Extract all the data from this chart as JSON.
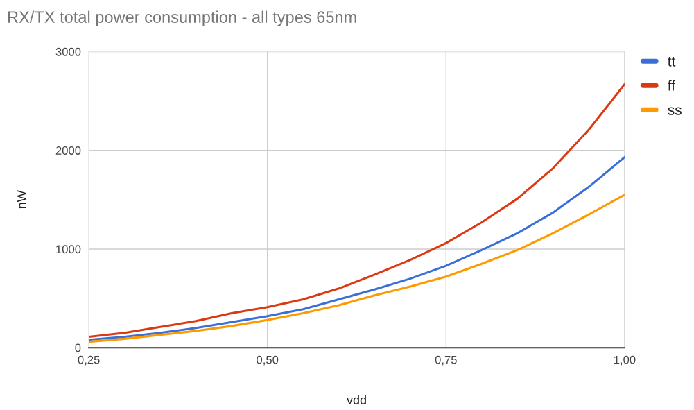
{
  "chart_data": {
    "type": "line",
    "title": "RX/TX total power consumption - all types 65nm",
    "xlabel": "vdd",
    "ylabel": "nW",
    "x": [
      0.25,
      0.3,
      0.35,
      0.4,
      0.45,
      0.5,
      0.55,
      0.6,
      0.65,
      0.7,
      0.75,
      0.8,
      0.85,
      0.9,
      0.95,
      1.0
    ],
    "series": [
      {
        "name": "tt",
        "color": "#3b6fd8",
        "values": [
          80,
          110,
          150,
          200,
          260,
          320,
          390,
          490,
          590,
          700,
          830,
          990,
          1160,
          1370,
          1630,
          1930
        ]
      },
      {
        "name": "ff",
        "color": "#dc3912",
        "values": [
          110,
          150,
          210,
          270,
          350,
          410,
          490,
          600,
          740,
          890,
          1060,
          1270,
          1510,
          1820,
          2210,
          2670
        ]
      },
      {
        "name": "ss",
        "color": "#ff9900",
        "values": [
          60,
          90,
          130,
          170,
          220,
          280,
          350,
          430,
          530,
          620,
          720,
          850,
          990,
          1160,
          1350,
          1550
        ]
      }
    ],
    "xlim": [
      0.25,
      1.0
    ],
    "xticks": [
      {
        "value": 0.25,
        "label": "0,25"
      },
      {
        "value": 0.5,
        "label": "0,50"
      },
      {
        "value": 0.75,
        "label": "0,75"
      },
      {
        "value": 1.0,
        "label": "1,00"
      }
    ],
    "ylim": [
      0,
      3000
    ],
    "yticks": [
      0,
      1000,
      2000,
      3000
    ],
    "grid": true,
    "legend": "top right",
    "marker": "none",
    "line_style": "solid"
  }
}
